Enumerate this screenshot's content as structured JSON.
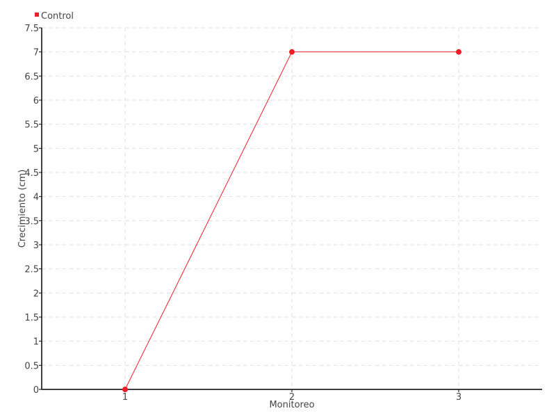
{
  "chart_data": {
    "type": "line",
    "title": "",
    "xlabel": "Monitoreo",
    "ylabel": "Crecimiento (cm)",
    "x": [
      1,
      2,
      3
    ],
    "x_tick_labels": [
      "1",
      "2",
      "3"
    ],
    "xlim": [
      0.5,
      3.5
    ],
    "ylim": [
      0,
      7.5
    ],
    "y_ticks": [
      0,
      0.5,
      1,
      1.5,
      2,
      2.5,
      3,
      3.5,
      4,
      4.5,
      5,
      5.5,
      6,
      6.5,
      7,
      7.5
    ],
    "y_tick_labels": [
      "0",
      "0.5",
      "1",
      "1.5",
      "2",
      "2.5",
      "3",
      "3.5",
      "4",
      "4.5",
      "5",
      "5.5",
      "6",
      "6.5",
      "7",
      "7.5"
    ],
    "grid": true,
    "legend_placement": "top-left",
    "series": [
      {
        "name": "Control",
        "color": "#ee1c25",
        "values": [
          0,
          7,
          7
        ]
      }
    ]
  }
}
